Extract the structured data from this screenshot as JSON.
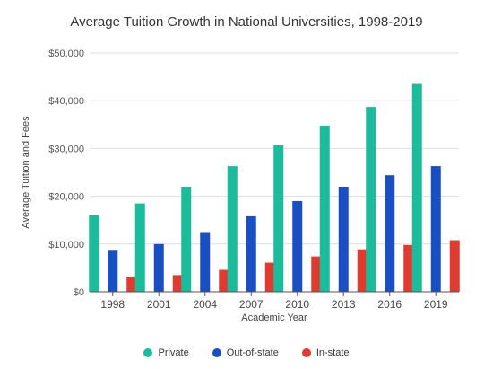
{
  "chart_data": {
    "type": "bar",
    "title": "Average Tuition Growth in National Universities, 1998-2019",
    "xlabel": "Academic Year",
    "ylabel": "Average Tuition and Fees",
    "categories": [
      "1998",
      "2001",
      "2004",
      "2007",
      "2010",
      "2013",
      "2016",
      "2019"
    ],
    "series": [
      {
        "name": "Private",
        "color": "#1abc9c",
        "values": [
          16000,
          18500,
          22000,
          26300,
          30700,
          34800,
          38700,
          43500
        ]
      },
      {
        "name": "Out-of-state",
        "color": "#1a4fc4",
        "values": [
          8600,
          10000,
          12500,
          15800,
          19000,
          22000,
          24400,
          26300
        ]
      },
      {
        "name": "In-state",
        "color": "#e03b31",
        "values": [
          3200,
          3500,
          4600,
          6100,
          7400,
          8900,
          9800,
          10800
        ]
      }
    ],
    "ylim": [
      0,
      50000
    ],
    "yticks": [
      0,
      10000,
      20000,
      30000,
      40000,
      50000
    ],
    "ytick_labels": [
      "$0",
      "$10,000",
      "$20,000",
      "$30,000",
      "$40,000",
      "$50,000"
    ],
    "grid": true,
    "legend_position": "bottom"
  }
}
